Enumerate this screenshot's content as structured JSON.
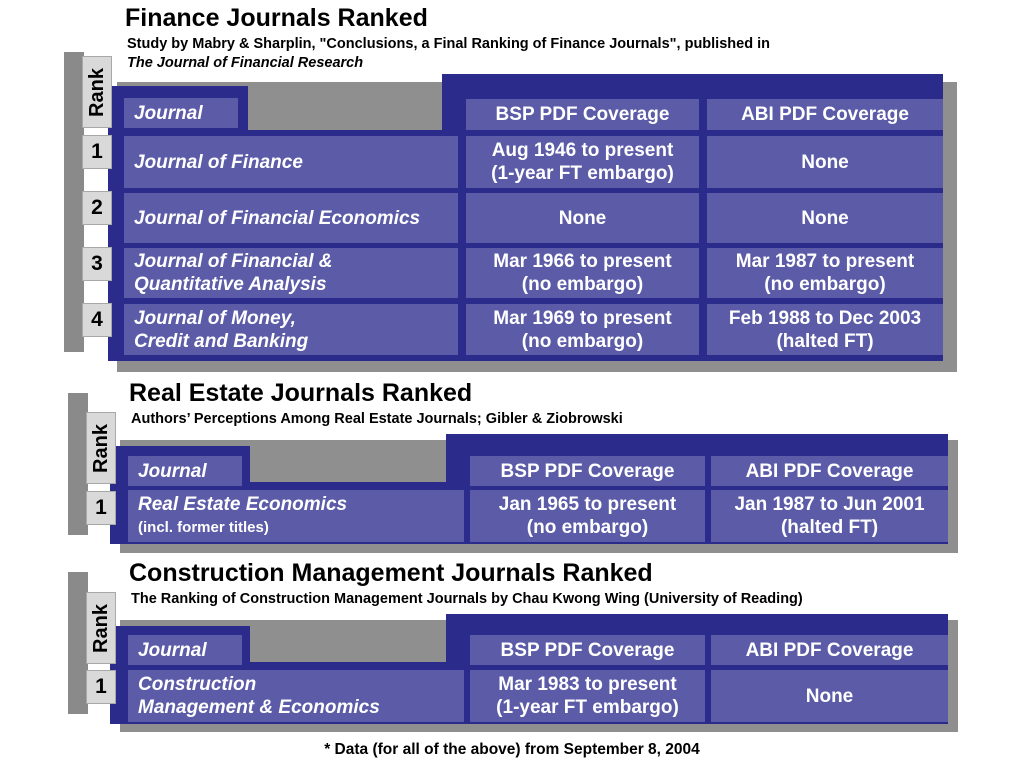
{
  "finance": {
    "title": "Finance Journals Ranked",
    "subtitle": "Study by Mabry & Sharplin, \"Conclusions, a Final Ranking of Finance Journals\", published in",
    "subtitle_italic": "The Journal of Financial Research",
    "rank_label": "Rank",
    "headers": {
      "journal": "Journal",
      "bsp": "BSP PDF Coverage",
      "abi": "ABI PDF Coverage"
    },
    "rows": [
      {
        "rank": "1",
        "journal": "Journal of Finance",
        "journal2": "",
        "bsp1": "Aug 1946 to present",
        "bsp2": "(1-year FT embargo)",
        "abi1": "None",
        "abi2": ""
      },
      {
        "rank": "2",
        "journal": "Journal of Financial Economics",
        "journal2": "",
        "bsp1": "None",
        "bsp2": "",
        "abi1": "None",
        "abi2": ""
      },
      {
        "rank": "3",
        "journal": "Journal of Financial &",
        "journal2": "Quantitative Analysis",
        "bsp1": "Mar 1966 to present",
        "bsp2": "(no embargo)",
        "abi1": "Mar 1987 to present",
        "abi2": "(no embargo)"
      },
      {
        "rank": "4",
        "journal": "Journal of Money,",
        "journal2": "Credit and Banking",
        "bsp1": "Mar 1969 to present",
        "bsp2": "(no embargo)",
        "abi1": "Feb 1988 to Dec 2003",
        "abi2": "(halted FT)"
      }
    ]
  },
  "realestate": {
    "title": "Real Estate Journals Ranked",
    "subtitle": "Authors’ Perceptions Among Real Estate Journals; Gibler & Ziobrowski",
    "rank_label": "Rank",
    "headers": {
      "journal": "Journal",
      "bsp": "BSP PDF Coverage",
      "abi": "ABI PDF Coverage"
    },
    "rows": [
      {
        "rank": "1",
        "journal": "Real Estate Economics",
        "journal_note": "(incl. former titles)",
        "bsp1": "Jan 1965 to present",
        "bsp2": "(no embargo)",
        "abi1": "Jan 1987 to Jun 2001",
        "abi2": "(halted FT)"
      }
    ]
  },
  "construction": {
    "title": "Construction Management Journals Ranked",
    "subtitle": "The Ranking of Construction Management Journals by Chau Kwong Wing (University of Reading)",
    "rank_label": "Rank",
    "headers": {
      "journal": "Journal",
      "bsp": "BSP PDF Coverage",
      "abi": "ABI PDF Coverage"
    },
    "rows": [
      {
        "rank": "1",
        "journal": "Construction",
        "journal2": "Management & Economics",
        "bsp1": "Mar 1983 to present",
        "bsp2": "(1-year FT embargo)",
        "abi1": "None",
        "abi2": ""
      }
    ]
  },
  "footnote": "*  Data (for all of the above) from September 8, 2004",
  "colors": {
    "navy": "#2b2b8c",
    "cell": "#5b5ba8",
    "shadow": "#8f8f8f",
    "rank_box": "#d9d9d9"
  }
}
